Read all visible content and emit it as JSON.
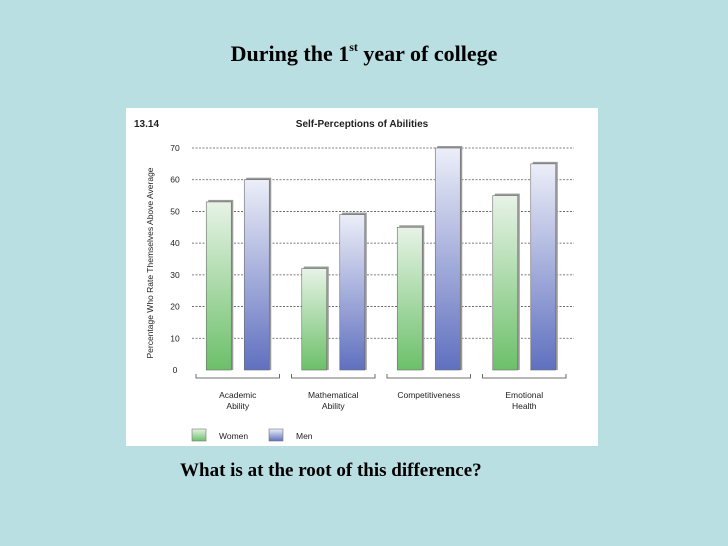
{
  "slide": {
    "title_pre": "During the 1",
    "title_sup": "st",
    "title_post": " year of college",
    "question": "What is at the root of this difference?"
  },
  "figure": {
    "number": "13.14"
  },
  "chart_data": {
    "type": "bar",
    "title": "Self-Perceptions of Abilities",
    "ylabel": "Percentage Who Rate Themselves Above Average",
    "xlabel": "",
    "ylim": [
      0,
      70
    ],
    "yticks": [
      0,
      10,
      20,
      30,
      40,
      50,
      60,
      70
    ],
    "grid": true,
    "legend_position": "bottom-left",
    "categories": [
      [
        "Academic",
        "Ability"
      ],
      [
        "Mathematical",
        "Ability"
      ],
      [
        "Competitiveness"
      ],
      [
        "Emotional",
        "Health"
      ]
    ],
    "series": [
      {
        "name": "Women",
        "values": [
          53,
          32,
          45,
          55
        ],
        "color_top": "#e7f3e6",
        "color_bottom": "#6cc06a"
      },
      {
        "name": "Men",
        "values": [
          60,
          49,
          70,
          65
        ],
        "color_top": "#eceef8",
        "color_bottom": "#5f70bf"
      }
    ]
  }
}
